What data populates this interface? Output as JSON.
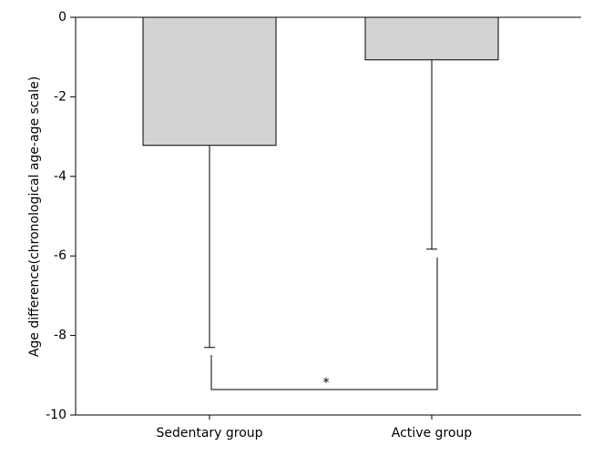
{
  "chart_data": {
    "type": "bar",
    "y_label": "Age difference(chronological age-age scale)",
    "categories": [
      "Sedentary group",
      "Active group"
    ],
    "values": [
      -3.22,
      -1.07
    ],
    "errors": [
      5.08,
      4.76
    ],
    "color": "#d3d3d3",
    "ylim": [
      -10,
      0
    ],
    "yticks": [
      0,
      -2,
      -4,
      -6,
      -8,
      -10
    ],
    "annotation": "*"
  }
}
